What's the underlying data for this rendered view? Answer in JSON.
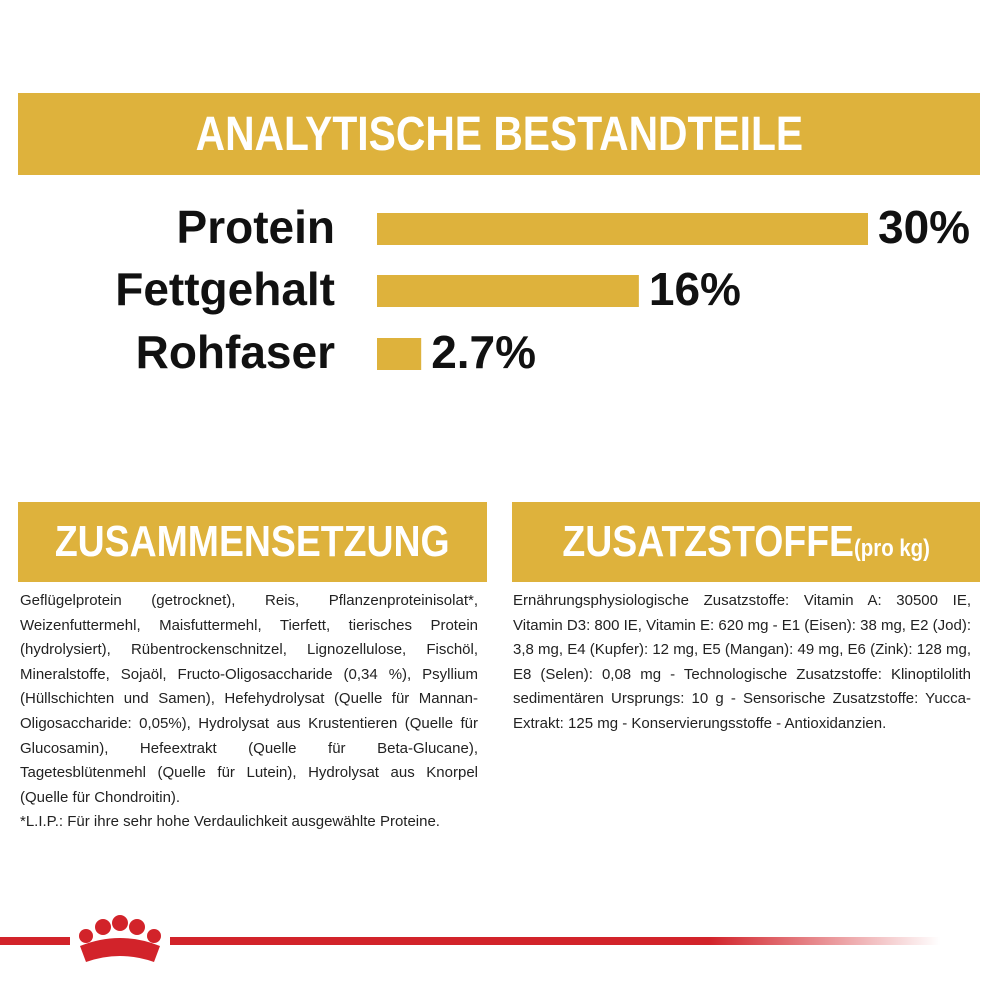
{
  "chart_data": {
    "type": "bar",
    "orientation": "horizontal",
    "title": "ANALYTISCHE BESTANDTEILE",
    "categories": [
      "Protein",
      "Fettgehalt",
      "Rohfaser"
    ],
    "values": [
      30,
      16,
      2.7
    ],
    "value_labels": [
      "30%",
      "16%",
      "2.7%"
    ],
    "color": "#deb23c"
  },
  "composition": {
    "title": "ZUSAMMENSETZUNG",
    "text": "Geflügelprotein (getrocknet), Reis, Pflanzenproteinisolat*, Weizenfuttermehl, Maisfuttermehl, Tierfett, tierisches Protein (hydrolysiert), Rübentrockenschnitzel, Lignozellulose, Fischöl, Mineralstoffe, Sojaöl, Fructo-Oligosaccharide (0,34 %), Psyllium (Hüllschichten und Samen), Hefehydrolysat (Quelle für Mannan-Oligosaccharide: 0,05%), Hydrolysat aus Krustentieren (Quelle für Glucosamin), Hefeextrakt (Quelle für Beta-Glucane), Tagetesblütenmehl (Quelle für Lutein), Hydrolysat aus Knorpel (Quelle für Chondroitin).",
    "footnote": "*L.I.P.: Für ihre sehr hohe Verdaulichkeit ausgewählte Proteine."
  },
  "additives": {
    "title": "ZUSATZSTOFFE",
    "unit": "(pro kg)",
    "text": "Ernährungsphysiologische Zusatzstoffe: Vitamin A: 30500 IE, Vitamin D3: 800 IE, Vitamin E: 620 mg - E1 (Eisen): 38 mg, E2 (Jod): 3,8 mg, E4 (Kupfer): 12 mg, E5 (Mangan): 49 mg, E6 (Zink): 128 mg, E8 (Selen): 0,08 mg - Technologische Zusatzstoffe: Klinoptilolith sedimentären Ursprungs: 10 g - Sensorische Zusatzstoffe: Yucca-Extrakt: 125 mg - Konservierungsstoffe - Antioxidanzien."
  }
}
